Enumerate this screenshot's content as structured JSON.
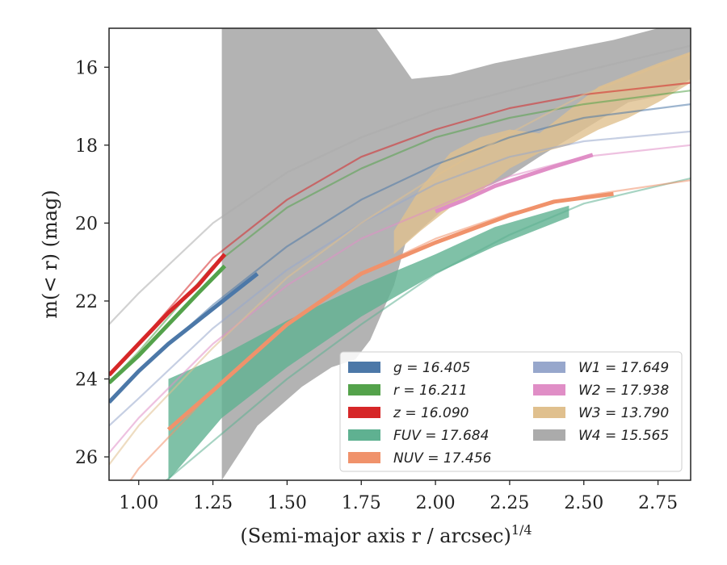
{
  "chart_data": {
    "type": "line",
    "xlabel": "(Semi-major axis r / arcsec)",
    "xlabel_sup": "1/4",
    "ylabel": "m(< r) (mag)",
    "xlim": [
      0.9,
      2.86
    ],
    "ylim": [
      26.6,
      15.0
    ],
    "y_inverted": true,
    "xticks": [
      1.0,
      1.25,
      1.5,
      1.75,
      2.0,
      2.25,
      2.5,
      2.75
    ],
    "xtick_labels": [
      "1.00",
      "1.25",
      "1.50",
      "1.75",
      "2.00",
      "2.25",
      "2.50",
      "2.75"
    ],
    "yticks": [
      16,
      18,
      20,
      22,
      24,
      26
    ],
    "ytick_labels": [
      "16",
      "18",
      "20",
      "22",
      "24",
      "26"
    ],
    "legend_position": "lower-right",
    "legend": [
      {
        "key": "g",
        "label": "g = 16.405",
        "color": "#4c78a8"
      },
      {
        "key": "r",
        "label": "r = 16.211",
        "color": "#54a24b"
      },
      {
        "key": "z",
        "label": "z = 16.090",
        "color": "#d62728"
      },
      {
        "key": "fuv",
        "label": "FUV = 17.684",
        "color": "#5fb191"
      },
      {
        "key": "nuv",
        "label": "NUV = 17.456",
        "color": "#f0926b"
      },
      {
        "key": "w1",
        "label": "W1 = 17.649",
        "color": "#97a7cc"
      },
      {
        "key": "w2",
        "label": "W2 = 17.938",
        "color": "#e08ec6"
      },
      {
        "key": "w3",
        "label": "W3 = 13.790",
        "color": "#e0c08e"
      },
      {
        "key": "w4",
        "label": "W4 = 15.565",
        "color": "#ababab"
      }
    ],
    "series": [
      {
        "key": "g",
        "color": "#4c78a8",
        "data_x": [
          0.9,
          1.0,
          1.1,
          1.2,
          1.3,
          1.4
        ],
        "data_y": [
          24.6,
          23.8,
          23.1,
          22.5,
          21.9,
          21.3
        ],
        "model_x": [
          0.9,
          1.0,
          1.25,
          1.5,
          1.75,
          2.0,
          2.25,
          2.5,
          2.86
        ],
        "model_y": [
          24.6,
          23.8,
          22.1,
          20.6,
          19.4,
          18.5,
          17.8,
          17.3,
          16.95
        ]
      },
      {
        "key": "r",
        "color": "#54a24b",
        "data_x": [
          0.9,
          1.0,
          1.1,
          1.2,
          1.29
        ],
        "data_y": [
          24.1,
          23.4,
          22.6,
          21.8,
          21.1
        ],
        "model_x": [
          0.9,
          1.0,
          1.25,
          1.5,
          1.75,
          2.0,
          2.25,
          2.5,
          2.86
        ],
        "model_y": [
          24.1,
          23.3,
          21.1,
          19.6,
          18.6,
          17.8,
          17.3,
          16.95,
          16.6
        ]
      },
      {
        "key": "z",
        "color": "#d62728",
        "data_x": [
          0.9,
          1.0,
          1.1,
          1.2,
          1.29
        ],
        "data_y": [
          23.9,
          23.1,
          22.3,
          21.6,
          20.8
        ],
        "model_x": [
          0.9,
          1.0,
          1.25,
          1.5,
          1.75,
          2.0,
          2.25,
          2.5,
          2.86
        ],
        "model_y": [
          23.9,
          23.1,
          20.9,
          19.4,
          18.3,
          17.6,
          17.05,
          16.7,
          16.4
        ]
      },
      {
        "key": "fuv",
        "color": "#5fb191",
        "model_x": [
          0.9,
          1.0,
          1.25,
          1.5,
          1.75,
          2.0,
          2.25,
          2.5,
          2.86
        ],
        "model_y": [
          28.0,
          27.2,
          25.6,
          24.0,
          22.6,
          21.3,
          20.3,
          19.5,
          18.85
        ]
      },
      {
        "key": "nuv",
        "color": "#f0926b",
        "data_x": [
          1.1,
          1.25,
          1.5,
          1.75,
          2.0,
          2.25,
          2.4,
          2.6
        ],
        "data_y": [
          25.3,
          24.3,
          22.6,
          21.3,
          20.5,
          19.8,
          19.45,
          19.25
        ],
        "model_x": [
          0.9,
          1.0,
          1.25,
          1.5,
          1.75,
          2.0,
          2.25,
          2.5,
          2.86
        ],
        "model_y": [
          27.4,
          26.3,
          24.3,
          22.6,
          21.3,
          20.4,
          19.75,
          19.3,
          18.9
        ]
      },
      {
        "key": "w1",
        "color": "#97a7cc",
        "model_x": [
          0.9,
          1.0,
          1.25,
          1.5,
          1.75,
          2.0,
          2.25,
          2.5,
          2.86
        ],
        "model_y": [
          25.2,
          24.5,
          22.7,
          21.2,
          20.0,
          19.0,
          18.3,
          17.9,
          17.65
        ]
      },
      {
        "key": "w2",
        "color": "#e08ec6",
        "data_x": [
          2.0,
          2.1,
          2.2,
          2.3,
          2.4,
          2.53
        ],
        "data_y": [
          19.7,
          19.4,
          19.05,
          18.8,
          18.55,
          18.25
        ],
        "model_x": [
          0.9,
          1.0,
          1.25,
          1.5,
          1.75,
          2.0,
          2.25,
          2.5,
          2.86
        ],
        "model_y": [
          25.9,
          25.0,
          23.1,
          21.6,
          20.4,
          19.6,
          18.8,
          18.3,
          18.0
        ]
      },
      {
        "key": "w3",
        "color": "#e0c08e",
        "model_x": [
          0.9,
          1.0,
          1.25,
          1.5,
          1.75,
          2.0,
          2.25,
          2.5,
          2.86
        ],
        "model_y": [
          26.2,
          25.2,
          23.2,
          21.4,
          20.0,
          18.8,
          17.7,
          16.7,
          15.65
        ]
      },
      {
        "key": "w4",
        "color": "#ababab",
        "model_x": [
          0.9,
          1.0,
          1.25,
          1.5,
          1.75,
          2.0,
          2.25,
          2.5,
          2.86
        ],
        "model_y": [
          22.6,
          21.8,
          20.0,
          18.7,
          17.8,
          17.1,
          16.6,
          16.1,
          15.45
        ]
      }
    ],
    "bands": [
      {
        "key": "w4",
        "color": "#ababab",
        "upper_x": [
          1.28,
          1.8,
          1.81,
          1.92,
          2.05,
          2.2,
          2.4,
          2.6,
          2.75,
          2.86
        ],
        "upper_y": [
          15.0,
          15.0,
          15.1,
          16.3,
          16.2,
          15.9,
          15.6,
          15.3,
          15.0,
          15.0
        ],
        "lower_x": [
          1.28,
          1.4,
          1.55,
          1.65,
          1.73,
          1.78,
          1.86,
          1.9,
          2.05,
          2.25,
          2.35,
          2.5,
          2.65,
          2.78,
          2.86
        ],
        "lower_y": [
          26.6,
          25.2,
          24.2,
          23.7,
          23.5,
          23.0,
          21.6,
          20.5,
          19.5,
          18.8,
          18.3,
          17.6,
          16.9,
          16.7,
          16.3
        ]
      },
      {
        "key": "w3",
        "color": "#e0c08e",
        "upper_x": [
          1.86,
          1.95,
          2.05,
          2.15,
          2.25,
          2.35,
          2.45,
          2.55,
          2.65,
          2.75,
          2.86
        ],
        "upper_y": [
          20.2,
          19.1,
          18.2,
          17.8,
          17.6,
          17.7,
          17.1,
          16.5,
          16.2,
          15.9,
          15.6
        ],
        "lower_x": [
          1.86,
          1.95,
          2.05,
          2.15,
          2.25,
          2.35,
          2.45,
          2.55,
          2.65,
          2.75,
          2.86
        ],
        "lower_y": [
          20.8,
          20.2,
          19.6,
          19.2,
          18.6,
          18.2,
          18.0,
          17.6,
          17.3,
          16.9,
          16.4
        ]
      },
      {
        "key": "fuv",
        "color": "#5fb191",
        "upper_x": [
          1.1,
          1.28,
          1.5,
          1.75,
          2.0,
          2.2,
          2.45
        ],
        "upper_y": [
          24.0,
          23.4,
          22.5,
          21.6,
          20.8,
          20.1,
          19.55
        ],
        "lower_x": [
          1.1,
          1.28,
          1.5,
          1.75,
          2.0,
          2.2,
          2.45
        ],
        "lower_y": [
          26.6,
          25.0,
          23.7,
          22.4,
          21.3,
          20.6,
          19.85
        ]
      }
    ]
  }
}
